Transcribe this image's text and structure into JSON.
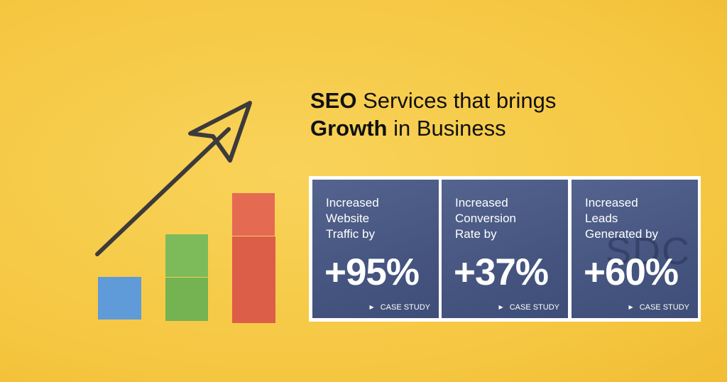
{
  "heading": {
    "line1": {
      "bold": "SEO",
      "rest": "Services that brings"
    },
    "line2": {
      "bold": "Growth",
      "rest": "in Business"
    }
  },
  "cards": [
    {
      "label": [
        "Increased",
        "Website",
        "Traffic by"
      ],
      "stat": "+95%",
      "cta": "CASE STUDY"
    },
    {
      "label": [
        "Increased",
        "Conversion",
        "Rate by"
      ],
      "stat": "+37%",
      "cta": "CASE STUDY"
    },
    {
      "label": [
        "Increased",
        "Leads",
        "Generated by"
      ],
      "stat": "+60%",
      "cta": "CASE STUDY",
      "watermark": "SDC"
    }
  ]
}
